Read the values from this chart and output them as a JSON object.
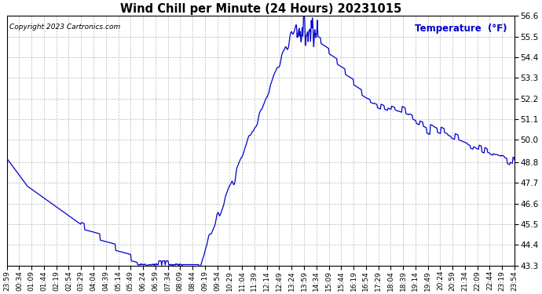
{
  "title": "Wind Chill per Minute (24 Hours) 20231015",
  "copyright_text": "Copyright 2023 Cartronics.com",
  "legend_label": "Temperature  (°F)",
  "line_color": "#0000cc",
  "legend_color": "#0000cc",
  "background_color": "#ffffff",
  "grid_color": "#aaaaaa",
  "ylim_min": 43.3,
  "ylim_max": 56.6,
  "yticks": [
    43.3,
    44.4,
    45.5,
    46.6,
    47.7,
    48.8,
    50.0,
    51.1,
    52.2,
    53.3,
    54.4,
    55.5,
    56.6
  ],
  "xtick_labels": [
    "23:59",
    "00:34",
    "01:09",
    "01:44",
    "02:19",
    "02:54",
    "03:29",
    "04:04",
    "04:39",
    "05:14",
    "05:49",
    "06:24",
    "06:59",
    "07:34",
    "08:09",
    "08:44",
    "09:19",
    "09:54",
    "10:29",
    "11:04",
    "11:39",
    "12:14",
    "12:49",
    "13:24",
    "13:59",
    "14:34",
    "15:09",
    "15:44",
    "16:19",
    "16:54",
    "17:29",
    "18:04",
    "18:39",
    "19:14",
    "19:49",
    "20:24",
    "20:59",
    "21:34",
    "22:09",
    "22:44",
    "23:19",
    "23:54"
  ],
  "title_fontsize": 10.5,
  "copyright_fontsize": 6.5,
  "legend_fontsize": 8.5,
  "xtick_fontsize": 6.5,
  "ytick_fontsize": 7.5,
  "line_width": 0.9
}
